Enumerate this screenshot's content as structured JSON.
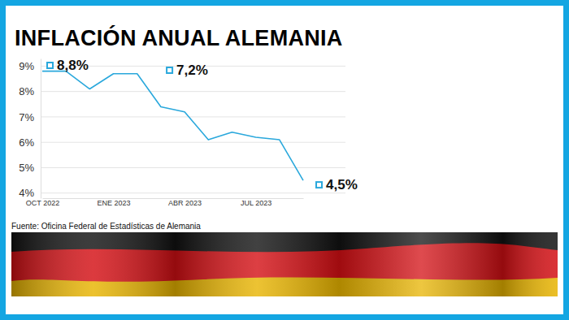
{
  "chart_data": {
    "type": "line",
    "title": "INFLACIÓN ANUAL ALEMANIA",
    "source": "Fuente: Oficina Federal de Estadísticas de Alemania",
    "categories": [
      "OCT 2022",
      null,
      null,
      "ENE 2023",
      null,
      null,
      "ABR 2023",
      null,
      null,
      "JUL 2023",
      null,
      null
    ],
    "values": [
      8.8,
      8.8,
      8.1,
      8.7,
      8.7,
      7.4,
      7.2,
      6.1,
      6.4,
      6.2,
      6.1,
      4.5
    ],
    "color": "#2aa8dc",
    "ylim": [
      3.8,
      9.3
    ],
    "yticks": [
      {
        "value": 4,
        "label": "4%"
      },
      {
        "value": 5,
        "label": "5%"
      },
      {
        "value": 6,
        "label": "6%"
      },
      {
        "value": 7,
        "label": "7%"
      },
      {
        "value": 8,
        "label": "8%"
      },
      {
        "value": 9,
        "label": "9%"
      }
    ],
    "grid": true,
    "annotations": [
      "8,8%",
      "7,2%",
      "4,5%"
    ]
  }
}
